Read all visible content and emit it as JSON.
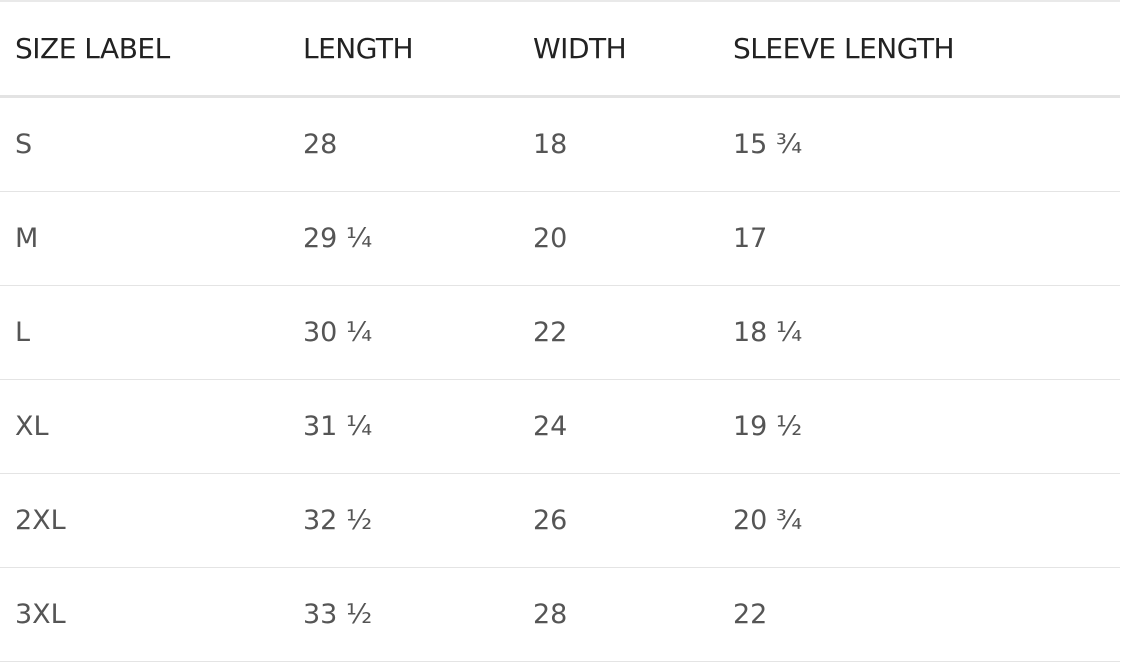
{
  "table": {
    "headers": [
      "SIZE LABEL",
      "LENGTH",
      "WIDTH",
      "SLEEVE LENGTH"
    ],
    "rows": [
      [
        "S",
        "28",
        "18",
        "15 ¾"
      ],
      [
        "M",
        "29 ¼",
        "20",
        "17"
      ],
      [
        "L",
        "30 ¼",
        "22",
        "18 ¼"
      ],
      [
        "XL",
        "31 ¼",
        "24",
        "19 ½"
      ],
      [
        "2XL",
        "32 ½",
        "26",
        "20 ¾"
      ],
      [
        "3XL",
        "33 ½",
        "28",
        "22"
      ]
    ]
  },
  "colors": {
    "header_text": "#222222",
    "body_text": "#555555",
    "divider": "#e4e4e4",
    "background": "#ffffff"
  }
}
